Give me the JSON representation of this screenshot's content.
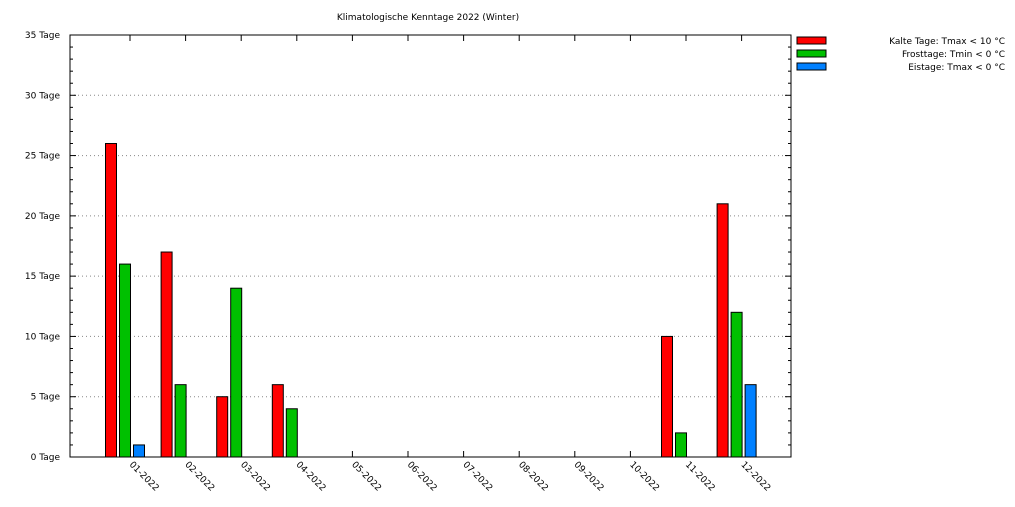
{
  "chart_data": {
    "type": "bar",
    "title": "Klimatologische Kenntage 2022 (Winter)",
    "xlabel": "",
    "ylabel": "",
    "categories": [
      "01-2022",
      "02-2022",
      "03-2022",
      "04-2022",
      "05-2022",
      "06-2022",
      "07-2022",
      "08-2022",
      "09-2022",
      "10-2022",
      "11-2022",
      "12-2022"
    ],
    "series": [
      {
        "name": "Kalte Tage: Tmax < 10 °C",
        "color": "#ff0000",
        "values": [
          26,
          17,
          5,
          6,
          0,
          0,
          0,
          0,
          0,
          0,
          10,
          21
        ]
      },
      {
        "name": "Frosttage: Tmin < 0 °C",
        "color": "#00c000",
        "values": [
          16,
          6,
          14,
          4,
          0,
          0,
          0,
          0,
          0,
          0,
          2,
          12
        ]
      },
      {
        "name": "Eistage: Tmax < 0 °C",
        "color": "#0080ff",
        "values": [
          1,
          0,
          0,
          0,
          0,
          0,
          0,
          0,
          0,
          0,
          0,
          6
        ]
      }
    ],
    "ylim": [
      0,
      35
    ],
    "yticks": [
      0,
      5,
      10,
      15,
      20,
      25,
      30,
      35
    ],
    "ytick_labels": [
      "0 Tage",
      "5 Tage",
      "10 Tage",
      "15 Tage",
      "20 Tage",
      "25 Tage",
      "30 Tage",
      "35 Tage"
    ],
    "grid": true,
    "legend_position": "top-right"
  }
}
